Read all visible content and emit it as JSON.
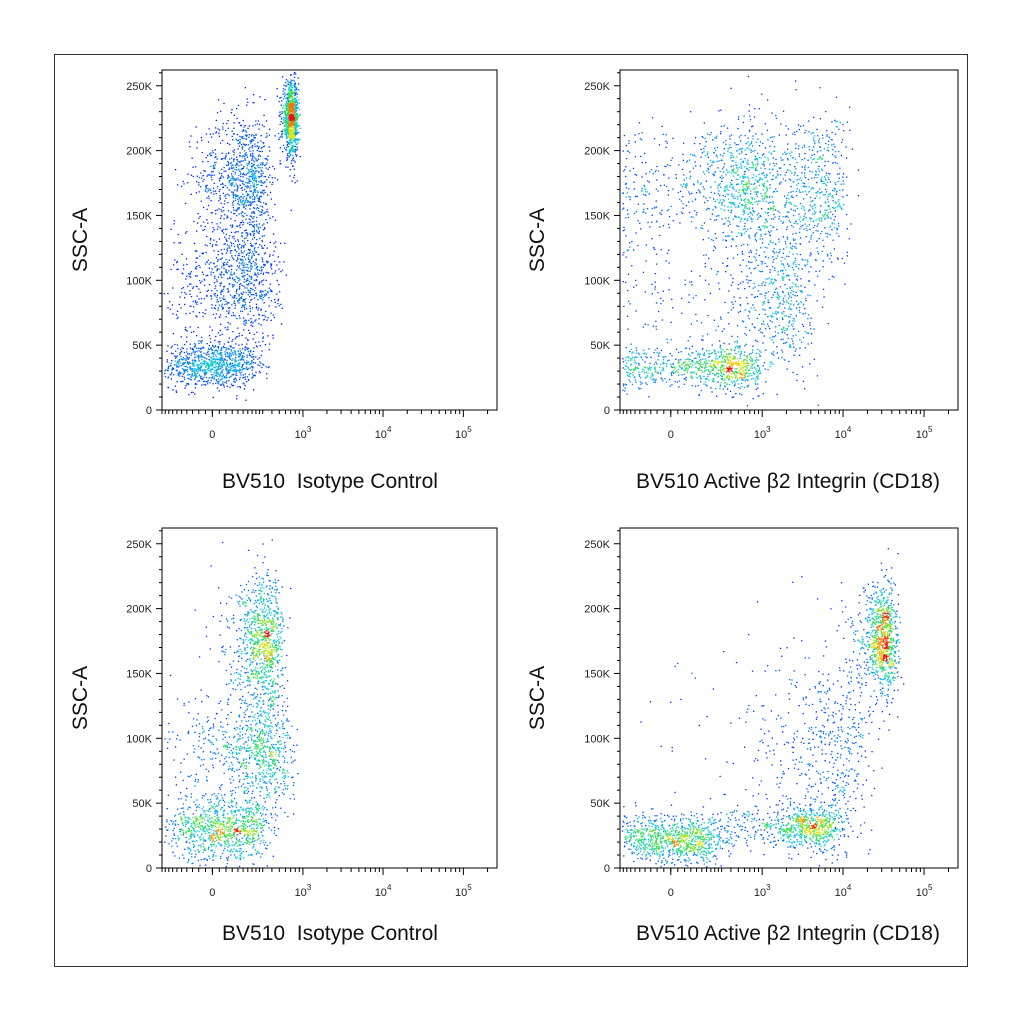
{
  "figure": {
    "colors": {
      "frame": "#333333",
      "axis": "#000000",
      "density_low": "#0000ff",
      "density_mid": "#00c8c8",
      "density_high": "#ff0000"
    }
  },
  "chart_data": [
    {
      "type": "scatter",
      "xlabel": "BV510  Isotype Control",
      "ylabel": "SSC-A",
      "x_scale": "biexponential",
      "ylim": [
        0,
        262144
      ],
      "y_ticks": [
        "0",
        "50K",
        "100K",
        "150K",
        "200K",
        "250K"
      ],
      "x_ticks": [
        {
          "base": "0",
          "exp": ""
        },
        {
          "base": "10",
          "exp": "3"
        },
        {
          "base": "10",
          "exp": "4"
        },
        {
          "base": "10",
          "exp": "5"
        }
      ],
      "density": "pseudocolor",
      "populations": [
        {
          "x_center": 0,
          "y_center": 35000,
          "x_spread": 120,
          "y_spread": 9000
        },
        {
          "x_center": 150,
          "y_center": 180000,
          "x_spread": 110,
          "y_spread": 24000
        },
        {
          "x_center": 120,
          "y_center": 100000,
          "x_spread": 160,
          "y_spread": 25000
        },
        {
          "x_center": 700,
          "y_center": 225000,
          "x_spread": 80,
          "y_spread": 14000
        }
      ]
    },
    {
      "type": "scatter",
      "xlabel": "BV510 Active β2 Integrin (CD18)",
      "ylabel": "SSC-A",
      "x_scale": "biexponential",
      "ylim": [
        0,
        262144
      ],
      "y_ticks": [
        "0",
        "50K",
        "100K",
        "150K",
        "200K",
        "250K"
      ],
      "x_ticks": [
        {
          "base": "0",
          "exp": ""
        },
        {
          "base": "10",
          "exp": "3"
        },
        {
          "base": "10",
          "exp": "4"
        },
        {
          "base": "10",
          "exp": "5"
        }
      ],
      "density": "pseudocolor",
      "populations": [
        {
          "x_center": 200,
          "y_center": 33000,
          "x_spread": 350,
          "y_spread": 8000
        },
        {
          "x_center": 300,
          "y_center": 175000,
          "x_spread": 500,
          "y_spread": 25000
        },
        {
          "x_center": 2500,
          "y_center": 170000,
          "x_spread": 4000,
          "y_spread": 30000
        },
        {
          "x_center": 800,
          "y_center": 90000,
          "x_spread": 1500,
          "y_spread": 30000
        }
      ]
    },
    {
      "type": "scatter",
      "xlabel": "BV510  Isotype Control",
      "ylabel": "SSC-A",
      "x_scale": "biexponential",
      "ylim": [
        0,
        262144
      ],
      "y_ticks": [
        "0",
        "50K",
        "100K",
        "150K",
        "200K",
        "250K"
      ],
      "x_ticks": [
        {
          "base": "0",
          "exp": ""
        },
        {
          "base": "10",
          "exp": "3"
        },
        {
          "base": "10",
          "exp": "4"
        },
        {
          "base": "10",
          "exp": "5"
        }
      ],
      "density": "pseudocolor",
      "populations": [
        {
          "x_center": 50,
          "y_center": 30000,
          "x_spread": 140,
          "y_spread": 12000
        },
        {
          "x_center": 300,
          "y_center": 175000,
          "x_spread": 120,
          "y_spread": 24000
        },
        {
          "x_center": 250,
          "y_center": 90000,
          "x_spread": 200,
          "y_spread": 25000
        }
      ]
    },
    {
      "type": "scatter",
      "xlabel": "BV510 Active β2 Integrin (CD18)",
      "ylabel": "SSC-A",
      "x_scale": "biexponential",
      "ylim": [
        0,
        262144
      ],
      "y_ticks": [
        "0",
        "50K",
        "100K",
        "150K",
        "200K",
        "250K"
      ],
      "x_ticks": [
        {
          "base": "0",
          "exp": ""
        },
        {
          "base": "10",
          "exp": "3"
        },
        {
          "base": "10",
          "exp": "4"
        },
        {
          "base": "10",
          "exp": "5"
        }
      ],
      "density": "pseudocolor",
      "populations": [
        {
          "x_center": 20,
          "y_center": 22000,
          "x_spread": 150,
          "y_spread": 9000
        },
        {
          "x_center": 2500,
          "y_center": 32000,
          "x_spread": 3000,
          "y_spread": 8000
        },
        {
          "x_center": 30000,
          "y_center": 175000,
          "x_spread": 8000,
          "y_spread": 22000
        },
        {
          "x_center": 3000,
          "y_center": 90000,
          "x_spread": 8000,
          "y_spread": 40000
        }
      ]
    }
  ]
}
